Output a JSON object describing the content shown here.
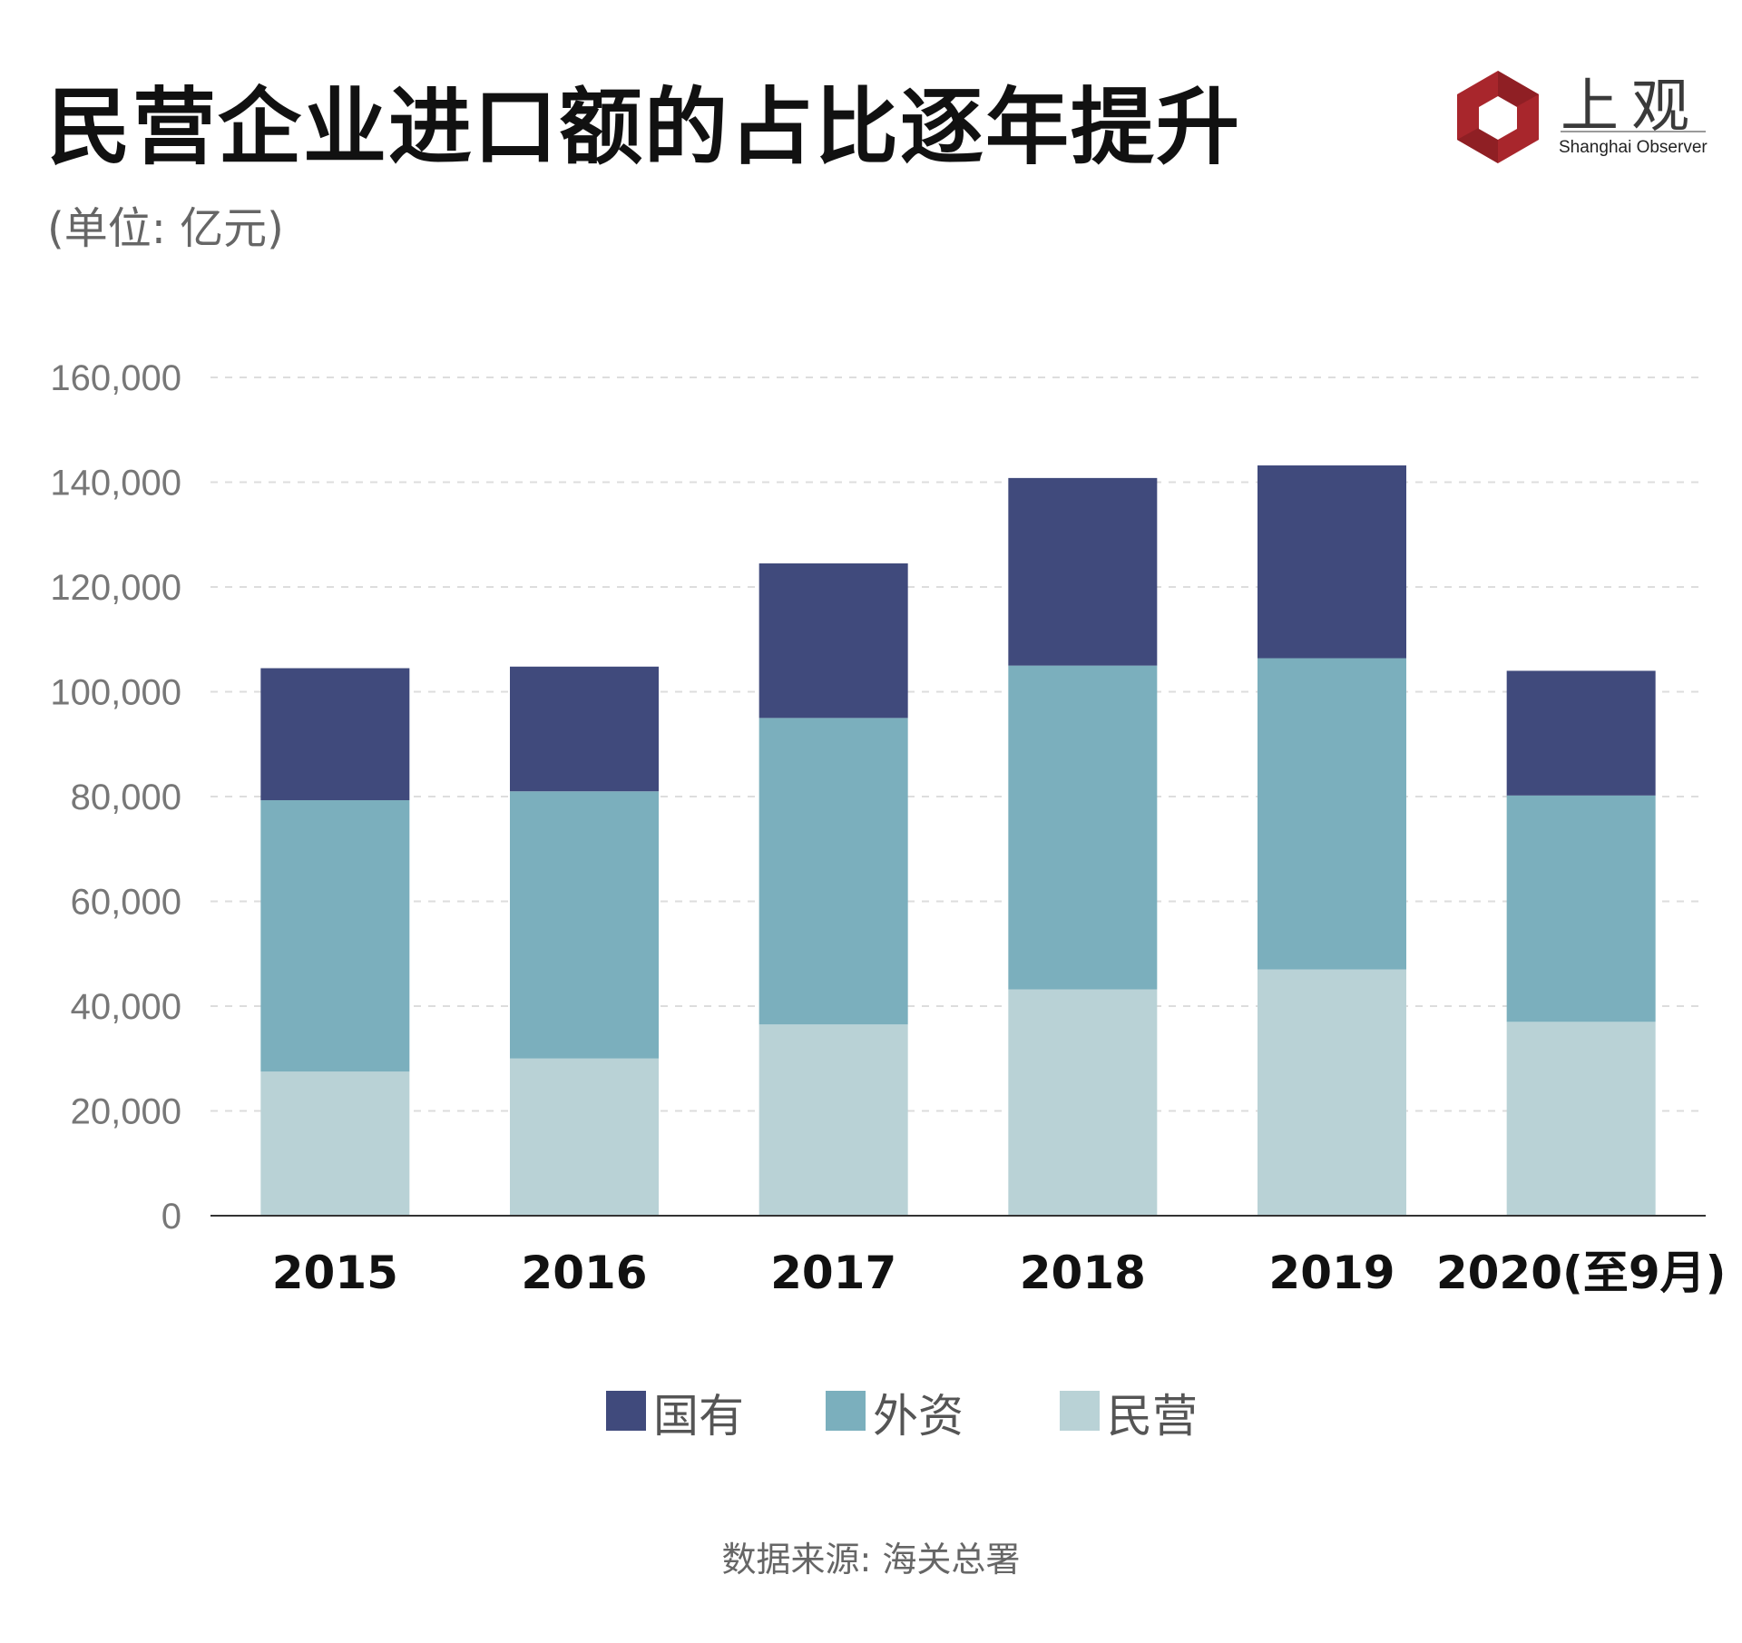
{
  "title": "民营企业进口额的占比逐年提升",
  "subtitle": "(单位: 亿元)",
  "logo": {
    "cn": "上观",
    "en": "Shanghai Observer"
  },
  "source": "数据来源: 海关总署",
  "colors": {
    "state": "#404a7c",
    "foreign": "#7bafbd",
    "private": "#b9d2d6",
    "grid": "#dddddd",
    "axis": "#333333",
    "tick": "#777777",
    "category": "#111111",
    "logo_red": "#a8262c"
  },
  "chart_data": {
    "type": "bar",
    "stacked": true,
    "categories": [
      "2015",
      "2016",
      "2017",
      "2018",
      "2019",
      "2020(至9月)"
    ],
    "series": [
      {
        "name": "民营",
        "color": "#b9d2d6",
        "values": [
          27500,
          30000,
          36500,
          43200,
          47000,
          37000
        ]
      },
      {
        "name": "外资",
        "color": "#7bafbd",
        "values": [
          51800,
          51000,
          58500,
          61800,
          59400,
          43200
        ]
      },
      {
        "name": "国有",
        "color": "#404a7c",
        "values": [
          25200,
          23800,
          29500,
          35800,
          36800,
          23800
        ]
      }
    ],
    "ylim": [
      0,
      160000
    ],
    "yticks": [
      0,
      20000,
      40000,
      60000,
      80000,
      100000,
      120000,
      140000,
      160000
    ],
    "ytick_labels": [
      "0",
      "20,000",
      "40,000",
      "60,000",
      "80,000",
      "100,000",
      "120,000",
      "140,000",
      "160,000"
    ],
    "grid": true,
    "legend": {
      "position": "bottom-center",
      "order": [
        "国有",
        "外资",
        "民营"
      ]
    }
  }
}
